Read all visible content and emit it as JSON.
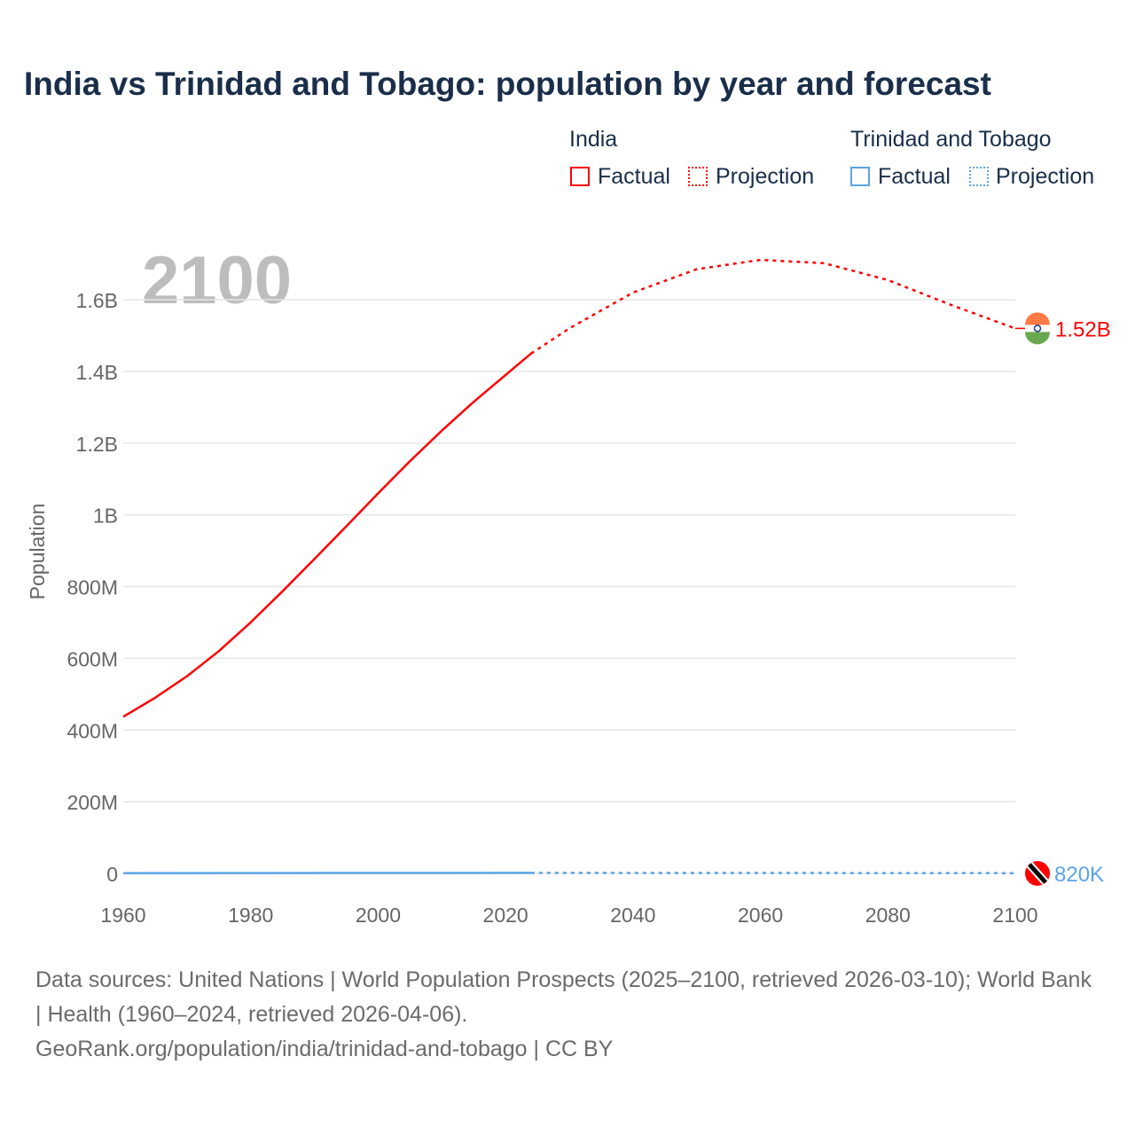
{
  "title": "India vs Trinidad and Tobago: population by year and forecast",
  "legend": {
    "groups": [
      {
        "name": "India",
        "factual": "Factual",
        "projection": "Projection",
        "color": "#ff0000"
      },
      {
        "name": "Trinidad and Tobago",
        "factual": "Factual",
        "projection": "Projection",
        "color": "#5ba3e6"
      }
    ]
  },
  "year_label": "2100",
  "end_labels": {
    "india": "1.52B",
    "tt": "820K"
  },
  "source": {
    "line1": "Data sources: United Nations | World Population Prospects (2025–2100, retrieved 2026-03-10); World Bank | Health (1960–2024, retrieved 2026-04-06).",
    "line2": "GeoRank.org/population/india/trinidad-and-tobago | CC BY"
  },
  "chart_data": {
    "type": "line",
    "ylabel": "Population",
    "xlim": [
      1960,
      2100
    ],
    "ylim": [
      0,
      1600000000
    ],
    "xticks": [
      "1960",
      "1980",
      "2000",
      "2020",
      "2040",
      "2060",
      "2080",
      "2100"
    ],
    "yticks": [
      {
        "v": 0,
        "l": "0"
      },
      {
        "v": 200000000,
        "l": "200M"
      },
      {
        "v": 400000000,
        "l": "400M"
      },
      {
        "v": 600000000,
        "l": "600M"
      },
      {
        "v": 800000000,
        "l": "800M"
      },
      {
        "v": 1000000000,
        "l": "1B"
      },
      {
        "v": 1200000000,
        "l": "1.2B"
      },
      {
        "v": 1400000000,
        "l": "1.4B"
      },
      {
        "v": 1600000000,
        "l": "1.6B"
      }
    ],
    "series": [
      {
        "name": "India Factual",
        "color": "#ff0000",
        "dash": false,
        "x": [
          1960,
          1965,
          1970,
          1975,
          1980,
          1985,
          1990,
          1995,
          2000,
          2005,
          2010,
          2015,
          2020,
          2024
        ],
        "y": [
          437000000.0,
          490000000.0,
          550000000.0,
          620000000.0,
          700000000.0,
          787000000.0,
          877000000.0,
          968000000.0,
          1060000000.0,
          1150000000.0,
          1235000000.0,
          1315000000.0,
          1390000000.0,
          1450000000.0
        ]
      },
      {
        "name": "India Projection",
        "color": "#ff0000",
        "dash": true,
        "x": [
          2024,
          2030,
          2040,
          2050,
          2060,
          2070,
          2080,
          2090,
          2100
        ],
        "y": [
          1450000000.0,
          1520000000.0,
          1620000000.0,
          1685000000.0,
          1711000000.0,
          1702000000.0,
          1655000000.0,
          1585000000.0,
          1520000000.0
        ]
      },
      {
        "name": "Trinidad and Tobago Factual",
        "color": "#5ba3e6",
        "dash": false,
        "x": [
          1960,
          1980,
          2000,
          2024
        ],
        "y": [
          850000.0,
          1080000.0,
          1270000.0,
          1500000.0
        ]
      },
      {
        "name": "Trinidad and Tobago Projection",
        "color": "#5ba3e6",
        "dash": true,
        "x": [
          2024,
          2060,
          2100
        ],
        "y": [
          1500000.0,
          1300000.0,
          820000.0
        ]
      }
    ]
  }
}
